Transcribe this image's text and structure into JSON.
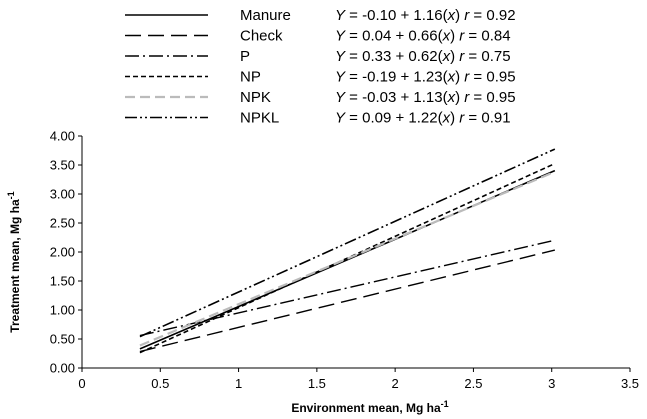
{
  "chart_data": {
    "type": "line",
    "title": "",
    "xlabel": "Environment mean, Mg ha",
    "xlabel_sup": "-1",
    "ylabel": "Treatment mean, Mg ha",
    "ylabel_sup": "-1",
    "xlim": [
      0,
      3.5
    ],
    "ylim": [
      0,
      4
    ],
    "x_ticks": [
      "0",
      "0.5",
      "1",
      "1.5",
      "2",
      "2.5",
      "3",
      "3.5"
    ],
    "y_ticks": [
      "0.00",
      "0.50",
      "1.00",
      "1.50",
      "2.00",
      "2.50",
      "3.00",
      "3.50",
      "4.00"
    ],
    "grid": false,
    "legend_position": "top",
    "x_range": [
      0.37,
      3.02
    ],
    "series": [
      {
        "name": "Manure",
        "intercept": -0.1,
        "slope": 1.16,
        "r": "0.92",
        "eq_int": "-0.10",
        "eq_slope": "1.16",
        "color": "#000000",
        "dash": "solid"
      },
      {
        "name": "Check",
        "intercept": 0.04,
        "slope": 0.66,
        "r": "0.84",
        "eq_int": " 0.04",
        "eq_slope": "0.66",
        "color": "#000000",
        "dash": "long-dash"
      },
      {
        "name": "P",
        "intercept": 0.33,
        "slope": 0.62,
        "r": "0.75",
        "eq_int": " 0.33",
        "eq_slope": "0.62",
        "color": "#000000",
        "dash": "dash-dot"
      },
      {
        "name": "NP",
        "intercept": -0.19,
        "slope": 1.23,
        "r": "0.95",
        "eq_int": "-0.19",
        "eq_slope": "1.23",
        "color": "#000000",
        "dash": "short-dash"
      },
      {
        "name": "NPK",
        "intercept": -0.03,
        "slope": 1.13,
        "r": "0.95",
        "eq_int": "-0.03",
        "eq_slope": "1.13",
        "color": "#bbbbbb",
        "dash": "dash-gray"
      },
      {
        "name": "NPKL",
        "intercept": 0.09,
        "slope": 1.22,
        "r": "0.91",
        "eq_int": " 0.09",
        "eq_slope": "1.22",
        "color": "#000000",
        "dash": "dash-dot-dot"
      }
    ]
  }
}
